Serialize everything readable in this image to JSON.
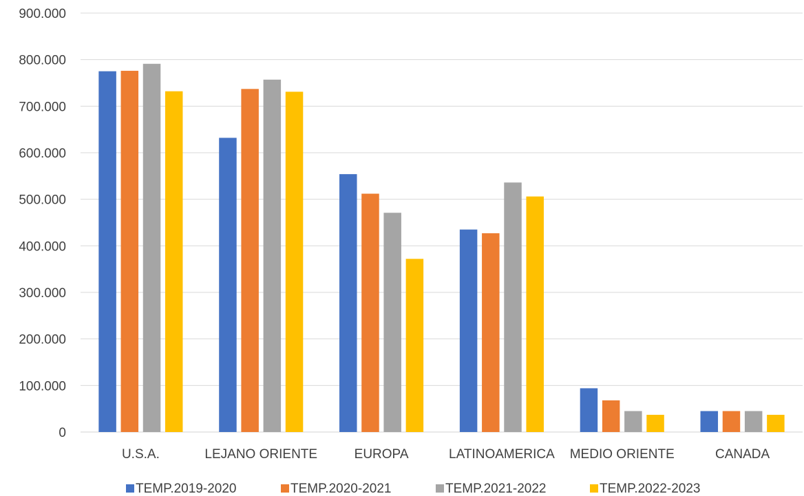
{
  "chart_data": {
    "type": "bar",
    "title": "",
    "xlabel": "",
    "ylabel": "",
    "categories": [
      "U.S.A.",
      "LEJANO ORIENTE",
      "EUROPA",
      "LATINOAMERICA",
      "MEDIO ORIENTE",
      "CANADA"
    ],
    "series": [
      {
        "name": "TEMP.2019-2020",
        "color": "#4472C4",
        "values": [
          775000,
          632000,
          554000,
          435000,
          94000,
          45000
        ]
      },
      {
        "name": "TEMP.2020-2021",
        "color": "#ED7D31",
        "values": [
          776000,
          737000,
          512000,
          427000,
          68000,
          45000
        ]
      },
      {
        "name": "TEMP.2021-2022",
        "color": "#A5A5A5",
        "values": [
          791000,
          757000,
          471000,
          536000,
          45000,
          45000
        ]
      },
      {
        "name": "TEMP.2022-2023",
        "color": "#FFC000",
        "values": [
          732000,
          731000,
          372000,
          506000,
          37000,
          37000
        ]
      }
    ],
    "ylim": [
      0,
      900000
    ],
    "yticks": [
      {
        "value": 0,
        "label": "0"
      },
      {
        "value": 100000,
        "label": "100.000"
      },
      {
        "value": 200000,
        "label": "200.000"
      },
      {
        "value": 300000,
        "label": "300.000"
      },
      {
        "value": 400000,
        "label": "400.000"
      },
      {
        "value": 500000,
        "label": "500.000"
      },
      {
        "value": 600000,
        "label": "600.000"
      },
      {
        "value": 700000,
        "label": "700.000"
      },
      {
        "value": 800000,
        "label": "800.000"
      },
      {
        "value": 900000,
        "label": "900.000"
      }
    ],
    "grid": true,
    "legend_position": "bottom"
  }
}
